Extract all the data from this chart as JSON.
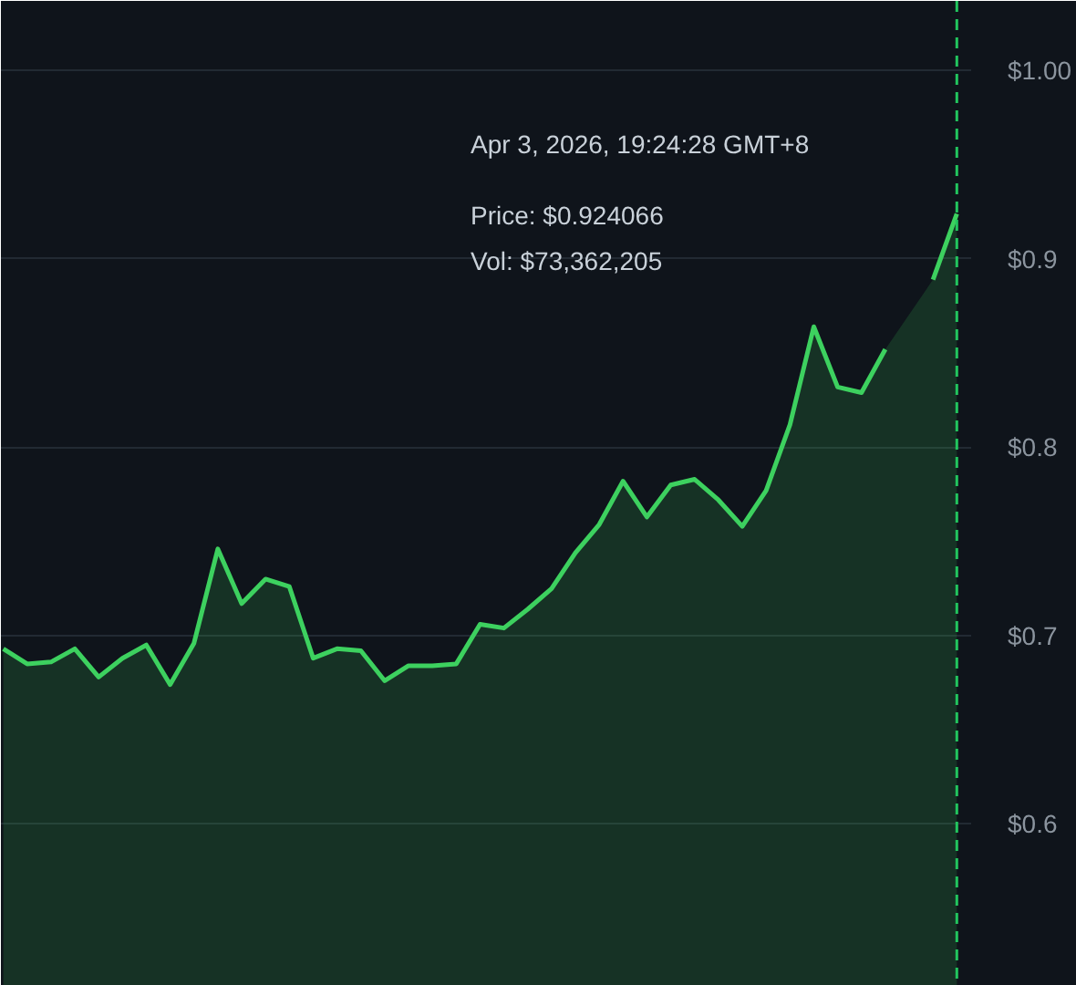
{
  "chart_data": {
    "type": "area",
    "categories": [
      null,
      null,
      null,
      null,
      null,
      null,
      null,
      null,
      null,
      null,
      null,
      null,
      null,
      null,
      null,
      null,
      null,
      null,
      null,
      null,
      null,
      null,
      null,
      null,
      null,
      null,
      null,
      null,
      null,
      null,
      null,
      null,
      null,
      null,
      null,
      null,
      null,
      null,
      null,
      null,
      null
    ],
    "series": [
      {
        "color": "#3dd15f",
        "values": [
          0.693,
          0.685,
          0.686,
          0.693,
          0.678,
          0.688,
          0.695,
          0.674,
          0.696,
          0.746,
          0.717,
          0.73,
          0.726,
          0.688,
          0.693,
          0.692,
          0.676,
          0.684,
          0.684,
          0.685,
          0.706,
          0.704,
          0.714,
          0.725,
          0.744,
          0.759,
          0.782,
          0.763,
          0.78,
          0.783,
          0.772,
          0.758,
          0.777,
          0.812,
          0.864,
          0.832,
          0.829,
          0.852,
          null,
          0.889,
          0.924
        ]
      }
    ],
    "ylim": [
      0.514,
      1.037
    ],
    "yticks": [
      {
        "value": 0.6,
        "label": "$0.6"
      },
      {
        "value": 0.7,
        "label": "$0.7"
      },
      {
        "value": 0.8,
        "label": "$0.8"
      },
      {
        "value": 0.9,
        "label": "$0.9"
      },
      {
        "value": 1.0,
        "label": "$1.00"
      }
    ],
    "tick_labels": "y",
    "grid": "y",
    "marker": "none",
    "line_style": "solid",
    "annotations": [
      "Apr 3, 2026, 19:24:28 GMT+8",
      "Price: $0.924066",
      "Vol: $73,362,205"
    ]
  }
}
